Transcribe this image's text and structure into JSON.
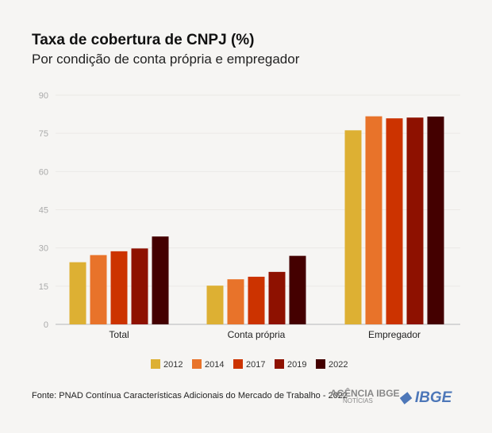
{
  "chart_data": {
    "type": "bar",
    "title": "Taxa de cobertura de CNPJ (%)",
    "subtitle": "Por condição de conta própria e empregador",
    "categories": [
      "Total",
      "Conta própria",
      "Empregador"
    ],
    "ylim": [
      0,
      90
    ],
    "yticks": [
      0,
      15,
      30,
      45,
      60,
      75,
      90
    ],
    "grid": true,
    "legend": "bottom",
    "series": [
      {
        "name": "2012",
        "color": "#ddb033",
        "values": [
          24.4,
          15.2,
          76.2
        ]
      },
      {
        "name": "2014",
        "color": "#e8732a",
        "values": [
          27.2,
          17.7,
          81.7
        ]
      },
      {
        "name": "2017",
        "color": "#cc3300",
        "values": [
          28.7,
          18.7,
          80.9
        ]
      },
      {
        "name": "2019",
        "color": "#8e1100",
        "values": [
          29.8,
          20.6,
          81.2
        ]
      },
      {
        "name": "2022",
        "color": "#440000",
        "values": [
          34.5,
          26.9,
          81.6
        ]
      }
    ]
  },
  "source": "Fonte: PNAD Contínua Características Adicionais do Mercado de Trabalho - 2022",
  "logos": {
    "agencia": "AGÊNCIA IBGE",
    "agencia_sub": "NOTÍCIAS",
    "ibge": "IBGE"
  }
}
